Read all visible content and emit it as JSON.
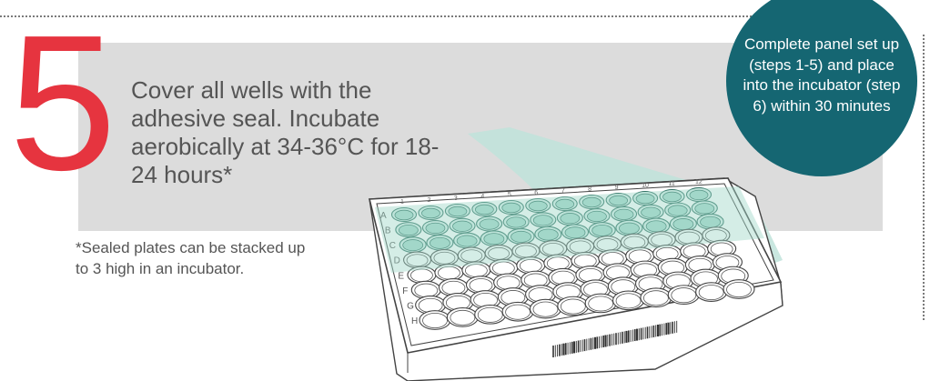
{
  "step": {
    "number": "5",
    "instruction": "Cover all wells with the adhesive seal. Incubate aerobically at 34-36°C for 18-24 hours*",
    "footnote": "*Sealed plates can be stacked up to 3 high in an incubator."
  },
  "callout": {
    "text": "Complete panel set up (steps 1-5) and place into the incubator (step 6) within 30 minutes"
  },
  "plate": {
    "row_labels": [
      "A",
      "B",
      "C",
      "D",
      "E",
      "F",
      "G",
      "H"
    ],
    "column_labels": [
      "1",
      "2",
      "3",
      "4",
      "5",
      "6",
      "7",
      "8",
      "9",
      "10",
      "11",
      "12"
    ],
    "sealed_rows": 3
  },
  "colors": {
    "step_number": "#e6343f",
    "callout_background": "#156672",
    "band": "#dcdcdc",
    "seal": "#bfe3da",
    "seal_well": "#7cc4b0"
  }
}
